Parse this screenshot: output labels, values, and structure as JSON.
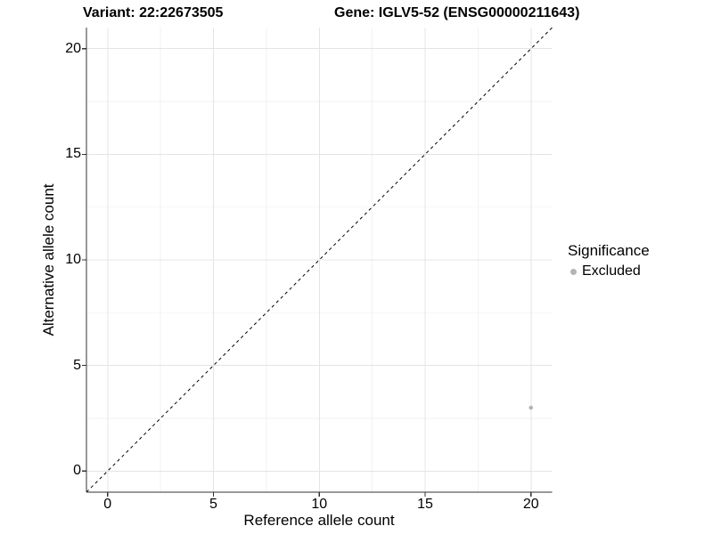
{
  "chart_data": {
    "type": "scatter",
    "title_left": "Variant: 22:22673505",
    "title_right": "Gene: IGLV5-52 (ENSG00000211643)",
    "xlabel": "Reference allele count",
    "ylabel": "Alternative allele count",
    "xlim": [
      -1,
      21
    ],
    "ylim": [
      -1,
      21
    ],
    "x_major_ticks": [
      0,
      5,
      10,
      15,
      20
    ],
    "x_tick_labels": [
      "0",
      "5",
      "10",
      "15",
      "20"
    ],
    "y_major_ticks": [
      0,
      5,
      10,
      15,
      20
    ],
    "y_tick_labels": [
      "0",
      "5",
      "10",
      "15",
      "20"
    ],
    "minor_ticks": [
      2.5,
      7.5,
      12.5,
      17.5
    ],
    "grid": true,
    "identity_line": {
      "style": "dashed",
      "x_start": -1,
      "y_start": -1,
      "x_end": 21,
      "y_end": 21
    },
    "series": [
      {
        "name": "Excluded",
        "color": "#b4b4b4",
        "points": [
          {
            "x": 20,
            "y": 3
          }
        ]
      }
    ],
    "legend": {
      "title": "Significance",
      "position": "right",
      "items": [
        {
          "label": "Excluded",
          "color": "#b4b4b4"
        }
      ]
    },
    "colors": {
      "axis_line": "#333333",
      "tick_mark": "#333333",
      "grid_major": "#e4e4e4",
      "grid_minor": "#f2f2f2",
      "identity_line": "#000000",
      "text": "#000000",
      "background": "#ffffff"
    }
  }
}
